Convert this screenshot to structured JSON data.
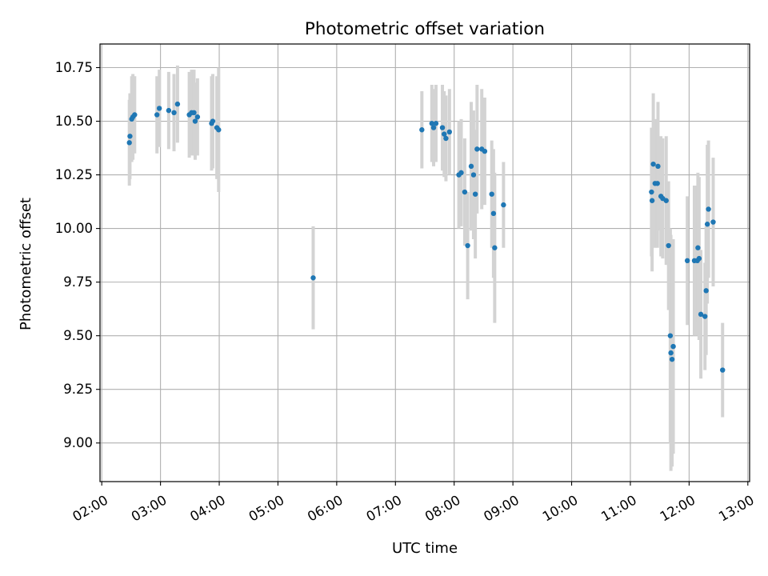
{
  "chart_data": {
    "type": "scatter",
    "title": "Photometric offset variation",
    "xlabel": "UTC time",
    "ylabel": "Photometric offset",
    "xlim_hours": [
      1.97,
      13.03
    ],
    "ylim": [
      8.82,
      10.86
    ],
    "grid": true,
    "legend": "none",
    "x_ticks": [
      {
        "hour": 2,
        "label": "02:00"
      },
      {
        "hour": 3,
        "label": "03:00"
      },
      {
        "hour": 4,
        "label": "04:00"
      },
      {
        "hour": 5,
        "label": "05:00"
      },
      {
        "hour": 6,
        "label": "06:00"
      },
      {
        "hour": 7,
        "label": "07:00"
      },
      {
        "hour": 8,
        "label": "08:00"
      },
      {
        "hour": 9,
        "label": "09:00"
      },
      {
        "hour": 10,
        "label": "10:00"
      },
      {
        "hour": 11,
        "label": "11:00"
      },
      {
        "hour": 12,
        "label": "12:00"
      },
      {
        "hour": 13,
        "label": "13:00"
      }
    ],
    "y_ticks": [
      {
        "value": 9.0,
        "label": "9.00"
      },
      {
        "value": 9.25,
        "label": "9.25"
      },
      {
        "value": 9.5,
        "label": "9.50"
      },
      {
        "value": 9.75,
        "label": "9.75"
      },
      {
        "value": 10.0,
        "label": "10.00"
      },
      {
        "value": 10.25,
        "label": "10.25"
      },
      {
        "value": 10.5,
        "label": "10.50"
      },
      {
        "value": 10.75,
        "label": "10.75"
      }
    ],
    "marker_color": "#1f77b4",
    "errorbar_color": "#d3d3d3",
    "series": [
      {
        "name": "offset",
        "x_hours": [
          2.47,
          2.48,
          2.51,
          2.53,
          2.56,
          2.94,
          2.98,
          3.14,
          3.23,
          3.29,
          3.49,
          3.53,
          3.57,
          3.59,
          3.63,
          3.87,
          3.89,
          3.96,
          3.99,
          5.6,
          7.45,
          7.62,
          7.65,
          7.69,
          7.8,
          7.83,
          7.86,
          7.92,
          8.08,
          8.12,
          8.18,
          8.23,
          8.29,
          8.33,
          8.36,
          8.39,
          8.47,
          8.52,
          8.64,
          8.67,
          8.69,
          8.84,
          11.36,
          11.37,
          11.39,
          11.42,
          11.46,
          11.47,
          11.52,
          11.55,
          11.61,
          11.65,
          11.68,
          11.69,
          11.71,
          11.73,
          11.97,
          12.09,
          12.14,
          12.15,
          12.17,
          12.2,
          12.27,
          12.29,
          12.31,
          12.33,
          12.41,
          12.57
        ],
        "values": [
          10.4,
          10.43,
          10.51,
          10.52,
          10.53,
          10.53,
          10.56,
          10.55,
          10.54,
          10.58,
          10.53,
          10.54,
          10.54,
          10.5,
          10.52,
          10.49,
          10.5,
          10.47,
          10.46,
          9.77,
          10.46,
          10.49,
          10.47,
          10.49,
          10.47,
          10.44,
          10.42,
          10.45,
          10.25,
          10.26,
          10.17,
          9.92,
          10.29,
          10.25,
          10.16,
          10.37,
          10.37,
          10.36,
          10.16,
          10.07,
          9.91,
          10.11,
          10.17,
          10.13,
          10.3,
          10.21,
          10.21,
          10.29,
          10.15,
          10.14,
          10.13,
          9.92,
          9.5,
          9.42,
          9.39,
          9.45,
          9.85,
          9.85,
          9.85,
          9.91,
          9.86,
          9.6,
          9.59,
          9.71,
          10.02,
          10.09,
          10.03,
          9.34
        ],
        "errors": [
          0.2,
          0.2,
          0.2,
          0.2,
          0.18,
          0.18,
          0.18,
          0.18,
          0.18,
          0.18,
          0.2,
          0.2,
          0.2,
          0.18,
          0.18,
          0.22,
          0.22,
          0.24,
          0.29,
          0.24,
          0.18,
          0.18,
          0.18,
          0.18,
          0.2,
          0.2,
          0.2,
          0.2,
          0.25,
          0.25,
          0.25,
          0.25,
          0.3,
          0.3,
          0.3,
          0.3,
          0.28,
          0.25,
          0.25,
          0.3,
          0.35,
          0.2,
          0.3,
          0.33,
          0.33,
          0.3,
          0.3,
          0.3,
          0.28,
          0.28,
          0.3,
          0.3,
          0.5,
          0.55,
          0.5,
          0.5,
          0.3,
          0.35,
          0.35,
          0.35,
          0.38,
          0.3,
          0.25,
          0.3,
          0.37,
          0.32,
          0.3,
          0.22
        ]
      }
    ]
  }
}
